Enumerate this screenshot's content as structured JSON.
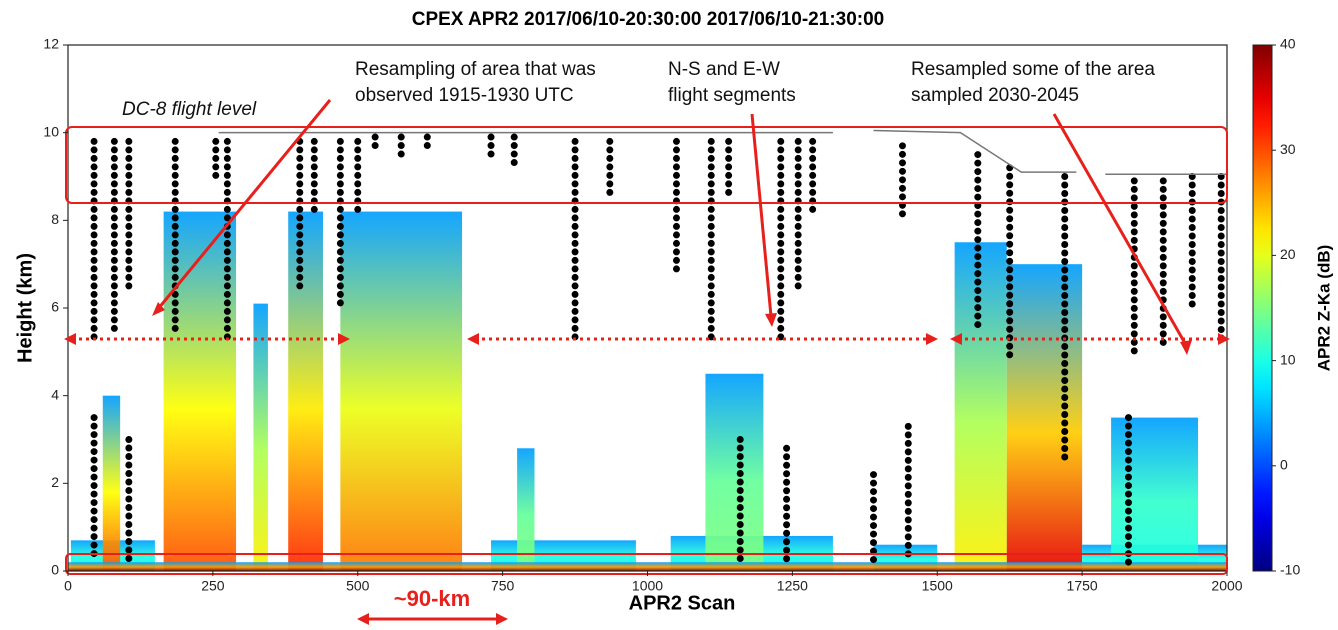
{
  "chart_data": {
    "type": "radar-curtain",
    "title": "CPEX  APR2  2017/06/10-20:30:00 2017/06/10-21:30:00",
    "x_label": "APR2 Scan",
    "y_label": "Height (km)",
    "colorbar_label": "APR2 Z-Ka (dB)",
    "xlim": [
      0,
      2000
    ],
    "xticks": [
      0,
      250,
      500,
      750,
      1000,
      1250,
      1500,
      1750,
      2000
    ],
    "ylim": [
      0,
      12
    ],
    "yticks": [
      0,
      2,
      4,
      6,
      8,
      10,
      12
    ],
    "clim": [
      -10,
      40
    ],
    "cticks": [
      -10,
      0,
      10,
      20,
      30,
      40
    ],
    "colormap": "jet",
    "echoes": {
      "x0": [
        5,
        60,
        165,
        320,
        380,
        470,
        730,
        775,
        1040,
        1100,
        1390,
        1530,
        1620,
        1750,
        1800,
        0
      ],
      "x1": [
        150,
        90,
        290,
        345,
        440,
        680,
        980,
        805,
        1320,
        1200,
        1500,
        1620,
        1750,
        2000,
        1950,
        2000
      ],
      "top": [
        0.7,
        4.0,
        8.2,
        6.1,
        8.2,
        8.2,
        0.7,
        2.8,
        0.8,
        4.5,
        0.6,
        7.5,
        7.0,
        0.6,
        3.5,
        0.2
      ],
      "peak": [
        8,
        30,
        30,
        22,
        32,
        28,
        8,
        15,
        8,
        15,
        8,
        22,
        35,
        8,
        10,
        40
      ]
    },
    "dot_columns": {
      "x": [
        45,
        80,
        105,
        185,
        255,
        275,
        400,
        425,
        470,
        500,
        530,
        575,
        620,
        730,
        770,
        875,
        935,
        1050,
        1110,
        1140,
        1230,
        1260,
        1285,
        1440,
        1570,
        1625,
        1720,
        1840,
        1890,
        1940,
        1990,
        45,
        105,
        1160,
        1240,
        1390,
        1450,
        1830
      ],
      "top": [
        9.8,
        9.8,
        9.8,
        9.8,
        9.8,
        9.8,
        9.8,
        9.8,
        9.8,
        9.8,
        9.9,
        9.9,
        9.9,
        9.9,
        9.9,
        9.8,
        9.8,
        9.8,
        9.8,
        9.8,
        9.8,
        9.8,
        9.8,
        9.7,
        9.5,
        9.2,
        9.0,
        8.9,
        8.9,
        9.0,
        9.0,
        3.5,
        3.0,
        3.0,
        2.8,
        2.2,
        3.3,
        3.5
      ],
      "bottom": [
        5.2,
        5.5,
        6.5,
        5.5,
        8.9,
        5.2,
        6.5,
        8.2,
        6.0,
        8.2,
        9.6,
        9.5,
        9.6,
        9.4,
        9.3,
        5.2,
        8.6,
        6.8,
        5.3,
        8.5,
        5.3,
        6.5,
        8.2,
        8.0,
        5.5,
        4.8,
        2.6,
        5.0,
        5.2,
        6.0,
        5.3,
        0.3,
        0.2,
        0.2,
        0.2,
        0.2,
        0.2,
        0.2
      ]
    },
    "flight_level": {
      "x": [
        260,
        680,
        1320,
        1340,
        1390,
        1540,
        1645,
        1740,
        1760,
        1790,
        2000
      ],
      "y": [
        10.0,
        10.0,
        10.0,
        null,
        10.05,
        10.0,
        9.1,
        9.1,
        null,
        9.05,
        9.05
      ],
      "color": "#777777"
    },
    "annotations": {
      "flight_level": "DC-8 flight level",
      "resampling": [
        "Resampling of area that was",
        "observed 1915-1930 UTC"
      ],
      "segments": [
        "N-S and E-W",
        "flight segments"
      ],
      "resampled": [
        "Resampled some of the area",
        "sampled 2030-2045"
      ],
      "distance": "~90-km"
    }
  }
}
